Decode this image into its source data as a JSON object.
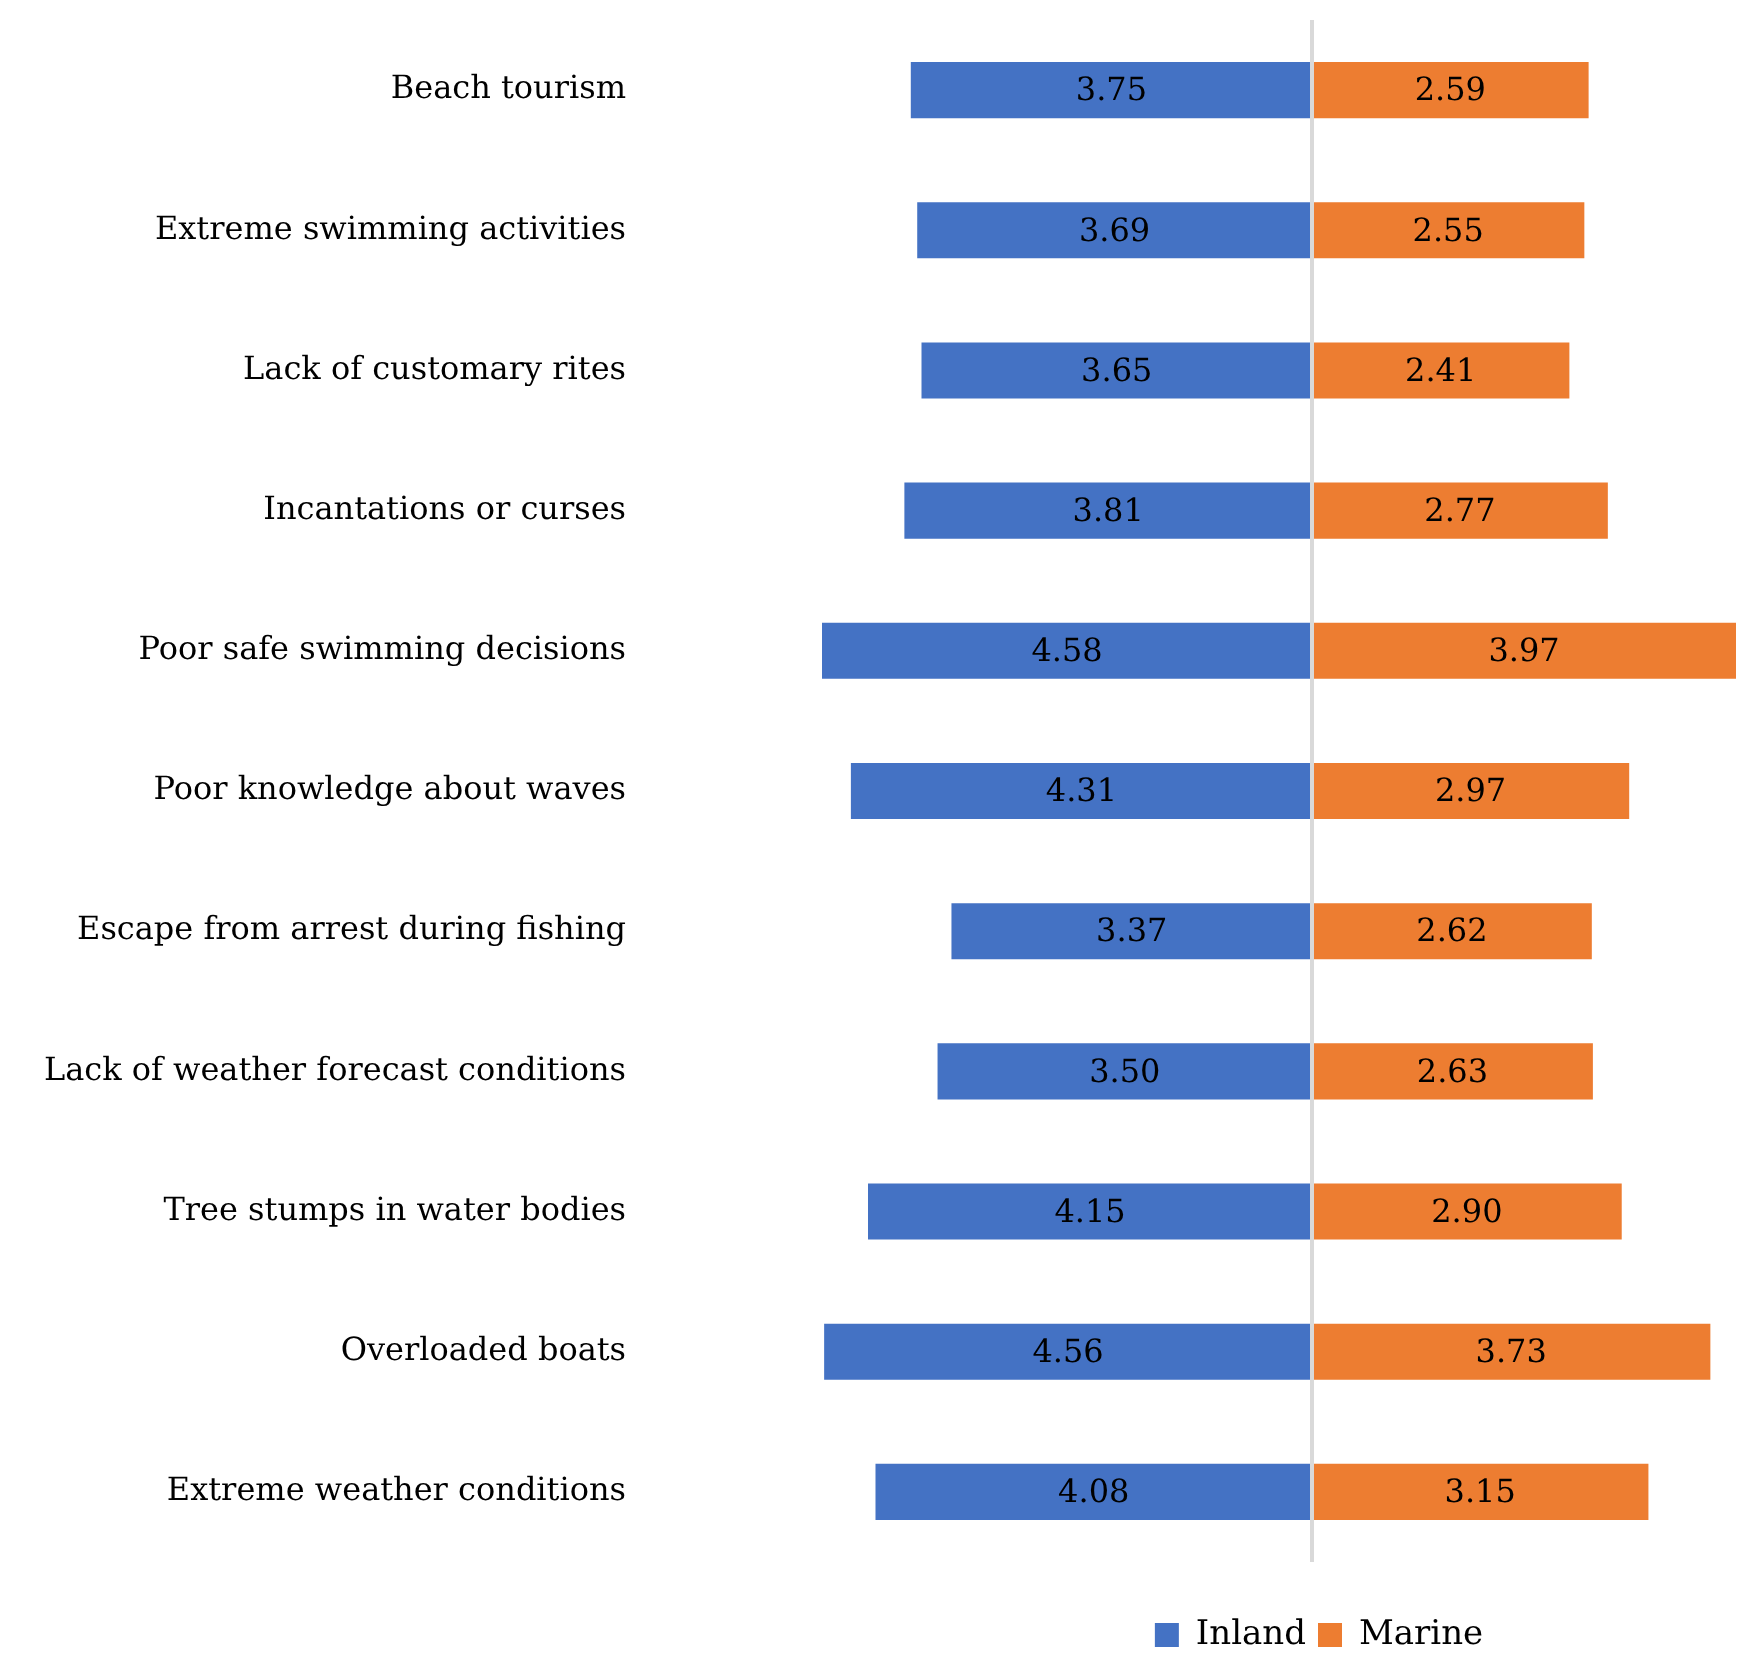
{
  "chart_data": [
    {
      "type": "bar",
      "orientation": "horizontal",
      "categories": [
        "Beach tourism",
        "Extreme swimming activities",
        "Lack of customary rites",
        "Incantations or curses",
        "Poor safe swimming decisions",
        "Poor knowledge about waves",
        "Escape from arrest during fishing",
        "Lack of weather forecast conditions",
        "Tree stumps in water bodies",
        "Overloaded boats",
        "Extreme weather conditions"
      ],
      "series": [
        {
          "name": "Inland",
          "color": "#4472c4",
          "values": [
            3.75,
            3.69,
            3.65,
            3.81,
            4.58,
            4.31,
            3.37,
            3.5,
            4.15,
            4.56,
            4.08
          ],
          "value_labels": [
            "3.75",
            "3.69",
            "3.65",
            "3.81",
            "4.58",
            "4.31",
            "3.37",
            "3.50",
            "4.15",
            "4.56",
            "4.08"
          ]
        }
      ],
      "xlim": [
        4.58,
        0
      ],
      "tick_labels": "y",
      "legend": "bottom"
    },
    {
      "type": "bar",
      "orientation": "horizontal",
      "categories": [
        null,
        null,
        null,
        null,
        null,
        null,
        null,
        null,
        null,
        null,
        null
      ],
      "series": [
        {
          "name": "Marine",
          "color": "#ed7d31",
          "values": [
            2.59,
            2.55,
            2.41,
            2.77,
            3.97,
            2.97,
            2.62,
            2.63,
            2.9,
            3.73,
            3.15
          ],
          "value_labels": [
            "2.59",
            "2.55",
            "2.41",
            "2.77",
            "3.97",
            "2.97",
            "2.62",
            "2.63",
            "2.90",
            "3.73",
            "3.15"
          ]
        }
      ],
      "xlim": [
        0,
        3.97
      ],
      "tick_labels": false,
      "legend": "bottom"
    }
  ]
}
